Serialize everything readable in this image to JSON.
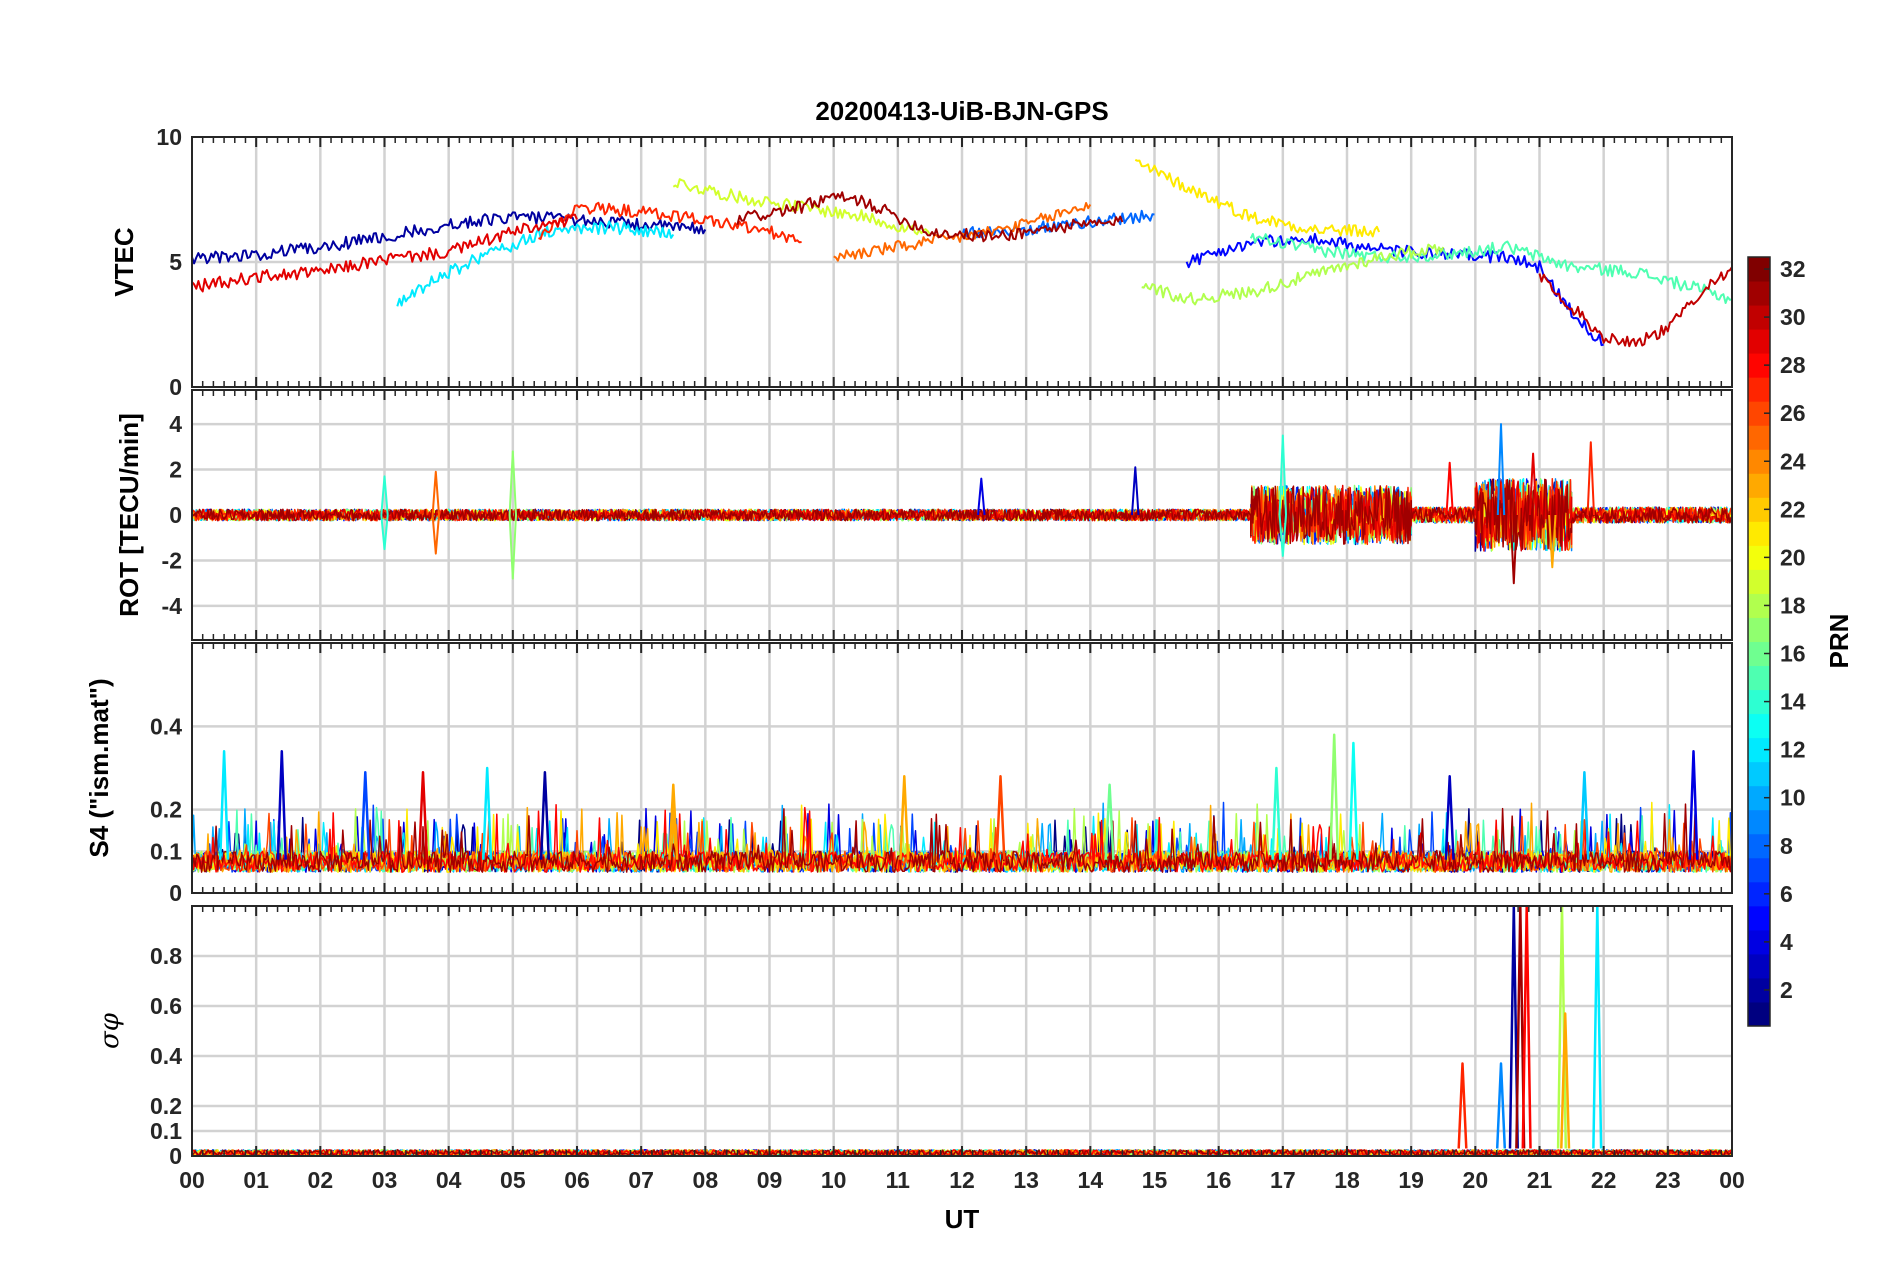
{
  "figure": {
    "title": "20200413-UiB-BJN-GPS",
    "xlabel": "UT"
  },
  "colorbar": {
    "label": "PRN",
    "min": 1,
    "max": 32,
    "ticks": [
      "2",
      "4",
      "6",
      "8",
      "10",
      "12",
      "14",
      "16",
      "18",
      "20",
      "22",
      "24",
      "26",
      "28",
      "30",
      "32"
    ],
    "colormap": "jet"
  },
  "chart_data": [
    {
      "type": "line",
      "panel": "VTEC",
      "ylabel": "VTEC",
      "xlim": [
        0,
        24
      ],
      "ylim": [
        0,
        10
      ],
      "yticks": [
        0,
        5,
        10
      ],
      "ytick_labels": [
        "0",
        "5",
        "10"
      ],
      "xtick_labels": [
        "00",
        "01",
        "02",
        "03",
        "04",
        "05",
        "06",
        "07",
        "08",
        "09",
        "10",
        "11",
        "12",
        "13",
        "14",
        "15",
        "16",
        "17",
        "18",
        "19",
        "20",
        "21",
        "22",
        "23",
        "00"
      ],
      "grid": true,
      "series": [
        {
          "prn": 2,
          "x": [
            0,
            1,
            2,
            3,
            4,
            5,
            6,
            7,
            8
          ],
          "y": [
            5.1,
            5.3,
            5.6,
            6.0,
            6.5,
            6.8,
            6.7,
            6.5,
            6.3
          ]
        },
        {
          "prn": 5,
          "x": [
            15.5,
            16.5,
            17.5,
            18.5,
            19.5,
            20.5,
            21,
            21.5,
            22
          ],
          "y": [
            5.0,
            5.8,
            5.9,
            5.5,
            5.3,
            5.2,
            4.8,
            3.0,
            1.7
          ]
        },
        {
          "prn": 8,
          "x": [
            12,
            13,
            14,
            15
          ],
          "y": [
            6.2,
            6.3,
            6.6,
            6.9
          ]
        },
        {
          "prn": 12,
          "x": [
            3.2,
            3.8,
            4.5,
            5,
            5.5,
            6.5,
            7.5
          ],
          "y": [
            3.3,
            4.3,
            5.2,
            5.7,
            6.2,
            6.4,
            6.1
          ]
        },
        {
          "prn": 15,
          "x": [
            16.5,
            17.5,
            18.5,
            19.5,
            20.5,
            21.5,
            22.5,
            23.5,
            24
          ],
          "y": [
            6.0,
            5.5,
            5.2,
            5.3,
            5.6,
            4.8,
            4.6,
            3.9,
            3.5
          ]
        },
        {
          "prn": 18,
          "x": [
            14.8,
            15.5,
            16.5,
            17.5,
            18.5,
            19.5
          ],
          "y": [
            4.1,
            3.5,
            3.8,
            4.5,
            5.2,
            5.6
          ]
        },
        {
          "prn": 19,
          "x": [
            7.5,
            8.5,
            9.5,
            10.5,
            11.5
          ],
          "y": [
            8.2,
            7.6,
            7.2,
            6.8,
            6.1
          ]
        },
        {
          "prn": 21,
          "x": [
            14.7,
            15.5,
            16.5,
            17.5,
            18.5
          ],
          "y": [
            9.0,
            8.0,
            6.8,
            6.3,
            6.2
          ]
        },
        {
          "prn": 25,
          "x": [
            10,
            11,
            12,
            13,
            14
          ],
          "y": [
            5.2,
            5.6,
            6.0,
            6.5,
            7.3
          ]
        },
        {
          "prn": 27,
          "x": [
            5.4,
            6,
            7,
            8,
            9,
            9.5
          ],
          "y": [
            6.0,
            7.2,
            7.0,
            6.7,
            6.2,
            5.8
          ]
        },
        {
          "prn": 29,
          "x": [
            0,
            1,
            2,
            3,
            4,
            5,
            6
          ],
          "y": [
            4.0,
            4.4,
            4.6,
            5.1,
            5.4,
            6.2,
            6.7
          ]
        },
        {
          "prn": 31,
          "x": [
            8.5,
            9.5,
            10,
            10.5,
            11.5,
            12.5,
            13.5,
            14.5
          ],
          "y": [
            6.7,
            7.2,
            7.6,
            7.4,
            6.2,
            6.0,
            6.4,
            6.6
          ]
        },
        {
          "prn": 30,
          "x": [
            21,
            21.5,
            22,
            22.5,
            23,
            23.5,
            24
          ],
          "y": [
            4.5,
            3.2,
            2.0,
            1.8,
            2.3,
            3.8,
            4.8
          ]
        }
      ]
    },
    {
      "type": "line",
      "panel": "ROT",
      "ylabel": "ROT [TECU/min]",
      "xlim": [
        0,
        24
      ],
      "ylim": [
        -5.5,
        5.5
      ],
      "yticks": [
        -4,
        -2,
        0,
        2,
        4
      ],
      "ytick_labels": [
        "-4",
        "-2",
        "0",
        "2",
        "4"
      ],
      "grid": true,
      "noise_bands": [
        {
          "x": [
            0,
            16.5
          ],
          "amp": 0.25
        },
        {
          "x": [
            16.5,
            19
          ],
          "amp": 1.3
        },
        {
          "x": [
            19,
            20
          ],
          "amp": 0.35
        },
        {
          "x": [
            20,
            21.5
          ],
          "amp": 1.6
        },
        {
          "x": [
            21.5,
            24
          ],
          "amp": 0.35
        }
      ],
      "spikes": [
        {
          "x": 3.0,
          "y": 1.7,
          "prn": 14
        },
        {
          "x": 3.0,
          "y": -1.5,
          "prn": 14
        },
        {
          "x": 3.8,
          "y": 1.9,
          "prn": 25
        },
        {
          "x": 3.8,
          "y": -1.7,
          "prn": 25
        },
        {
          "x": 5.0,
          "y": 2.8,
          "prn": 17
        },
        {
          "x": 5.0,
          "y": -2.8,
          "prn": 17
        },
        {
          "x": 12.3,
          "y": 1.6,
          "prn": 4
        },
        {
          "x": 14.7,
          "y": 2.1,
          "prn": 3
        },
        {
          "x": 17.0,
          "y": 3.5,
          "prn": 14
        },
        {
          "x": 17.0,
          "y": -1.8,
          "prn": 14
        },
        {
          "x": 19.6,
          "y": 2.3,
          "prn": 28
        },
        {
          "x": 20.4,
          "y": 4.0,
          "prn": 9
        },
        {
          "x": 20.6,
          "y": -3.0,
          "prn": 31
        },
        {
          "x": 20.9,
          "y": 2.7,
          "prn": 29
        },
        {
          "x": 21.2,
          "y": -2.3,
          "prn": 23
        },
        {
          "x": 21.8,
          "y": 3.2,
          "prn": 27
        }
      ]
    },
    {
      "type": "line",
      "panel": "S4",
      "ylabel": "S4 (\"ism.mat\")",
      "xlim": [
        0,
        24
      ],
      "ylim": [
        0,
        0.6
      ],
      "yticks": [
        0,
        0.1,
        0.2,
        0.4
      ],
      "ytick_labels": [
        "0",
        "0.1",
        "0.2",
        "0.4"
      ],
      "grid": true,
      "baseline": [
        0.05,
        0.1
      ],
      "spikes": [
        {
          "x": 0.5,
          "y": 0.34,
          "prn": 12
        },
        {
          "x": 1.4,
          "y": 0.34,
          "prn": 3
        },
        {
          "x": 2.7,
          "y": 0.29,
          "prn": 7
        },
        {
          "x": 3.6,
          "y": 0.29,
          "prn": 29
        },
        {
          "x": 4.6,
          "y": 0.3,
          "prn": 12
        },
        {
          "x": 5.5,
          "y": 0.29,
          "prn": 2
        },
        {
          "x": 7.5,
          "y": 0.26,
          "prn": 23
        },
        {
          "x": 11.1,
          "y": 0.28,
          "prn": 23
        },
        {
          "x": 12.6,
          "y": 0.28,
          "prn": 26
        },
        {
          "x": 14.3,
          "y": 0.26,
          "prn": 16
        },
        {
          "x": 16.9,
          "y": 0.3,
          "prn": 14
        },
        {
          "x": 17.8,
          "y": 0.38,
          "prn": 17
        },
        {
          "x": 18.1,
          "y": 0.36,
          "prn": 13
        },
        {
          "x": 19.6,
          "y": 0.28,
          "prn": 3
        },
        {
          "x": 21.7,
          "y": 0.29,
          "prn": 11
        },
        {
          "x": 23.4,
          "y": 0.34,
          "prn": 4
        }
      ]
    },
    {
      "type": "line",
      "panel": "sigma_phi",
      "ylabel": "σφ",
      "xlim": [
        0,
        24
      ],
      "ylim": [
        0,
        1
      ],
      "yticks": [
        0,
        0.1,
        0.2,
        0.4,
        0.6,
        0.8
      ],
      "ytick_labels": [
        "0",
        "0.1",
        "0.2",
        "0.4",
        "0.6",
        "0.8"
      ],
      "grid": true,
      "baseline": [
        0.0,
        0.025
      ],
      "spikes": [
        {
          "x": 19.8,
          "y": 0.37,
          "prn": 27
        },
        {
          "x": 20.4,
          "y": 0.37,
          "prn": 9
        },
        {
          "x": 20.6,
          "y": 1.0,
          "prn": 2
        },
        {
          "x": 20.7,
          "y": 1.0,
          "prn": 31
        },
        {
          "x": 20.8,
          "y": 1.0,
          "prn": 28
        },
        {
          "x": 21.35,
          "y": 1.0,
          "prn": 18
        },
        {
          "x": 21.4,
          "y": 0.57,
          "prn": 23
        },
        {
          "x": 21.9,
          "y": 1.0,
          "prn": 12
        }
      ]
    }
  ]
}
